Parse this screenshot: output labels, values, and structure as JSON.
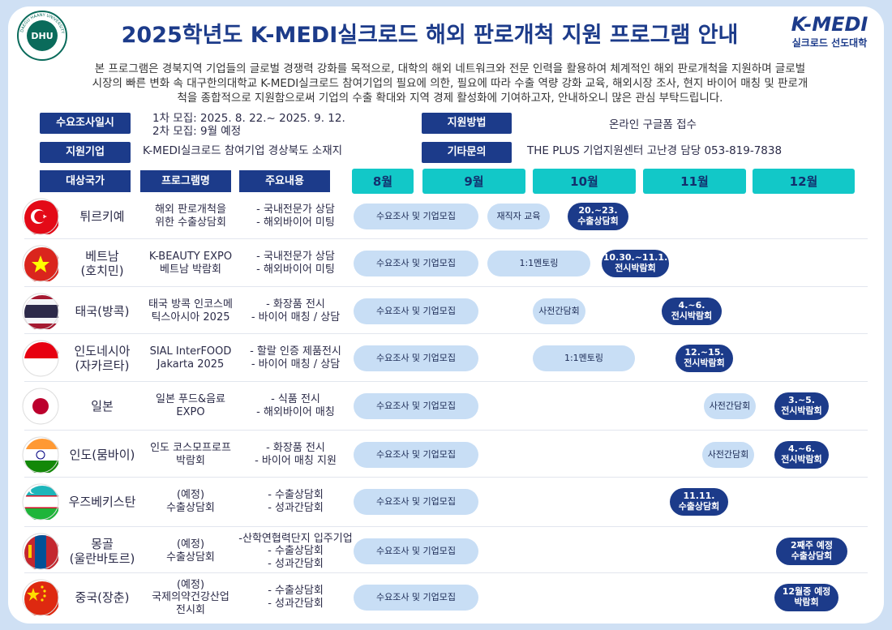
{
  "header": {
    "title": "2025학년도 K-MEDI실크로드 해외 판로개척 지원 프로그램 안내",
    "logo_left": "DHU",
    "logo_left_ring": "DAEGU HAANY UNIVERSITY",
    "logo_right": "K-MEDI",
    "logo_right_sub": "실크로드 선도대학"
  },
  "intro": "본 프로그램은 경북지역 기업들의 글로벌 경쟁력 강화를 목적으로, 대학의 해외 네트워크와 전문 인력을 활용하여 체계적인 해외 판로개척을 지원하며 글로벌\n시장의 빠른 변화 속 대구한의대학교 K-MEDI실크로드 참여기업의 필요에 의한, 필요에 따라 수출 역량 강화 교육, 해외시장 조사, 현지 바이어 매칭 및 판로개\n척을 종합적으로 지원함으로써 기업의 수출 확대와 지역 경제 활성화에 기여하고자,  안내하오니 많은 관심 부탁드립니다.",
  "info": [
    {
      "label": "수요조사일시",
      "value": "1차 모집: 2025. 8. 22.~ 2025. 9. 12.\n2차 모집: 9월 예정"
    },
    {
      "label": "지원방법",
      "value": "온라인 구글폼 접수"
    },
    {
      "label": "지원기업",
      "value": "K-MEDI실크로드 참여기업 경상북도 소재지"
    },
    {
      "label": "기타문의",
      "value": "THE PLUS 기업지원센터 고난경 담당 053-819-7838"
    }
  ],
  "table": {
    "columns": [
      "대상국가",
      "프로그램명",
      "주요내용"
    ],
    "months": [
      "8월",
      "9월",
      "10월",
      "11월",
      "12월"
    ],
    "rows": [
      {
        "country": "튀르키예",
        "program": "해외 판로개척을\n위한 수출상담회",
        "content": "- 국내전문가 상담\n- 해외바이어 미팅",
        "events": [
          "수요조사 및 기업모집",
          "재직자 교육",
          "20.~23.\n수출상담회"
        ]
      },
      {
        "country": "베트남\n(호치민)",
        "program": "K-BEAUTY EXPO\n베트남 박람회",
        "content": "- 국내전문가 상담\n- 해외바이어 미팅",
        "events": [
          "수요조사 및 기업모집",
          "1:1멘토링",
          "10.30.~11.1.\n전시박람회"
        ]
      },
      {
        "country": "태국(방콕)",
        "program": "태국 방콕 인코스메\n틱스아시아 2025",
        "content": "- 화장품 전시\n- 바이어 매칭 / 상담",
        "events": [
          "수요조사 및 기업모집",
          "사전간담회",
          "4.~6.\n전시박람회"
        ]
      },
      {
        "country": "인도네시아\n(자카르타)",
        "program": "SIAL InterFOOD\nJakarta 2025",
        "content": "- 할랄 인증 제품전시\n- 바이어 매칭 / 상담",
        "events": [
          "수요조사 및 기업모집",
          "1:1멘토링",
          "12.~15.\n전시박람회"
        ]
      },
      {
        "country": "일본",
        "program": "일본 푸드&음료\nEXPO",
        "content": "- 식품 전시\n- 해외바이어 매칭",
        "events": [
          "수요조사 및 기업모집",
          "사전간담회",
          "3.~5.\n전시박람회"
        ]
      },
      {
        "country": "인도(뭄바이)",
        "program": "인도 코스모프로프\n박람회",
        "content": "- 화장품 전시\n- 바이어 매칭 지원",
        "events": [
          "수요조사 및 기업모집",
          "사전간담회",
          "4.~6.\n전시박람회"
        ]
      },
      {
        "country": "우즈베키스탄",
        "program": "(예정)\n수출상담회",
        "content": "- 수출상담회\n- 성과간담회",
        "events": [
          "수요조사 및 기업모집",
          "11.11.\n수출상담회"
        ]
      },
      {
        "country": "몽골\n(울란바토르)",
        "program": "(예정)\n수출상담회",
        "content": "-산학연협력단지 입주기업\n- 수출상담회\n- 성과간담회",
        "events": [
          "수요조사 및 기업모집",
          "2째주 예정\n수출상담회"
        ]
      },
      {
        "country": "중국(장춘)",
        "program": "(예정)\n국제의약건강산업\n전시회",
        "content": "- 수출상담회\n- 성과간담회",
        "events": [
          "수요조사 및 기업모집",
          "12월중 예정\n박람회"
        ]
      }
    ]
  }
}
